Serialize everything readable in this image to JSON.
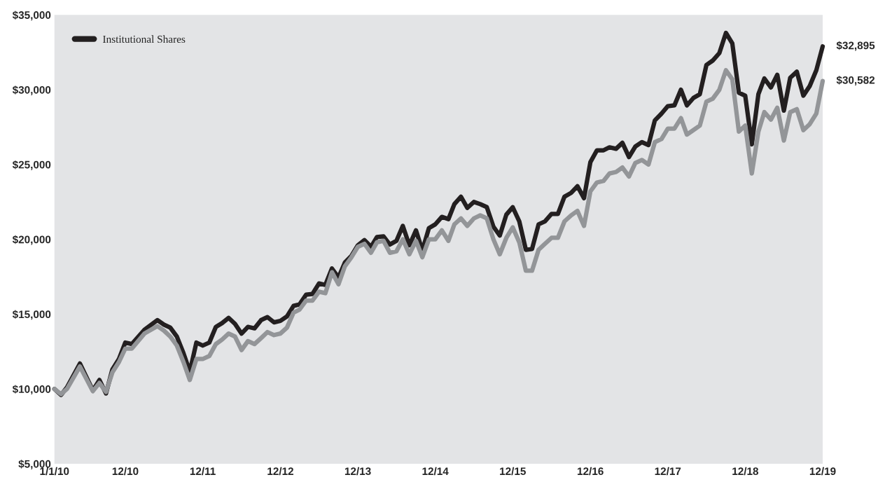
{
  "chart_data": {
    "type": "line",
    "x": [
      "2010-01",
      "2010-02",
      "2010-03",
      "2010-05",
      "2010-07",
      "2010-08",
      "2010-09",
      "2010-10",
      "2010-11",
      "2010-12",
      "2011-01",
      "2011-03",
      "2011-05",
      "2011-06",
      "2011-07",
      "2011-08",
      "2011-09",
      "2011-10",
      "2011-11",
      "2011-12",
      "2012-01",
      "2012-02",
      "2012-03",
      "2012-04",
      "2012-05",
      "2012-06",
      "2012-07",
      "2012-08",
      "2012-09",
      "2012-10",
      "2012-11",
      "2012-12",
      "2013-01",
      "2013-02",
      "2013-03",
      "2013-04",
      "2013-05",
      "2013-06",
      "2013-07",
      "2013-08",
      "2013-09",
      "2013-10",
      "2013-11",
      "2013-12",
      "2014-01",
      "2014-02",
      "2014-03",
      "2014-04",
      "2014-05",
      "2014-06",
      "2014-07",
      "2014-08",
      "2014-09",
      "2014-10",
      "2014-11",
      "2014-12",
      "2015-01",
      "2015-02",
      "2015-03",
      "2015-04",
      "2015-05",
      "2015-06",
      "2015-07",
      "2015-08",
      "2015-09",
      "2015-10",
      "2015-11",
      "2015-12",
      "2016-01",
      "2016-02",
      "2016-03",
      "2016-04",
      "2016-05",
      "2016-06",
      "2016-07",
      "2016-08",
      "2016-09",
      "2016-10",
      "2016-11",
      "2016-12",
      "2017-01",
      "2017-02",
      "2017-03",
      "2017-04",
      "2017-05",
      "2017-06",
      "2017-07",
      "2017-08",
      "2017-09",
      "2017-10",
      "2017-11",
      "2017-12",
      "2018-01",
      "2018-02",
      "2018-03",
      "2018-04",
      "2018-05",
      "2018-06",
      "2018-07",
      "2018-08",
      "2018-09",
      "2018-10",
      "2018-11",
      "2018-12",
      "2019-01",
      "2019-02",
      "2019-03",
      "2019-04",
      "2019-05",
      "2019-06",
      "2019-07",
      "2019-08",
      "2019-09",
      "2019-10",
      "2019-11",
      "2019-12"
    ],
    "series": [
      {
        "name": "Institutional Shares",
        "color": "#231f20",
        "values": [
          10000,
          9600,
          10100,
          11700,
          9900,
          10600,
          9700,
          11300,
          12000,
          13100,
          13000,
          13950,
          14600,
          14300,
          14100,
          13500,
          12400,
          11150,
          13100,
          12900,
          13100,
          14150,
          14400,
          14750,
          14350,
          13700,
          14150,
          14050,
          14600,
          14800,
          14450,
          14550,
          14850,
          15550,
          15650,
          16300,
          16350,
          17050,
          16950,
          18050,
          17450,
          18450,
          18900,
          19600,
          19950,
          19500,
          20150,
          20200,
          19650,
          19900,
          20900,
          19600,
          20600,
          19250,
          20750,
          21000,
          21500,
          21350,
          22350,
          22850,
          22100,
          22500,
          22350,
          22150,
          20850,
          20250,
          21650,
          22150,
          21200,
          19300,
          19350,
          21000,
          21200,
          21700,
          21700,
          22850,
          23100,
          23550,
          22750,
          25150,
          25950,
          25950,
          26150,
          26050,
          26450,
          25500,
          26200,
          26500,
          26300,
          27950,
          28400,
          28900,
          28950,
          30000,
          28950,
          29450,
          29700,
          31650,
          31950,
          32450,
          33800,
          33100,
          29800,
          29600,
          26350,
          29700,
          30750,
          30150,
          31000,
          28600,
          30800,
          31200,
          29600,
          30250,
          31300,
          32895
        ]
      },
      {
        "color": "#939598",
        "values": [
          10000,
          9650,
          10000,
          11500,
          9850,
          10400,
          9800,
          11100,
          11800,
          12700,
          12700,
          13700,
          14200,
          13900,
          13500,
          12900,
          11800,
          10600,
          12000,
          12000,
          12200,
          13000,
          13300,
          13700,
          13500,
          12600,
          13200,
          13000,
          13400,
          13800,
          13600,
          13700,
          14100,
          15100,
          15300,
          15900,
          15900,
          16500,
          16400,
          17800,
          17000,
          18200,
          18800,
          19500,
          19700,
          19100,
          19800,
          19900,
          19100,
          19200,
          20000,
          19000,
          19900,
          18800,
          20000,
          20000,
          20600,
          19900,
          21000,
          21400,
          20900,
          21400,
          21600,
          21400,
          20000,
          19000,
          20100,
          20800,
          19800,
          17900,
          17900,
          19300,
          19700,
          20100,
          20100,
          21200,
          21600,
          21900,
          20900,
          23200,
          23800,
          23900,
          24400,
          24500,
          24800,
          24200,
          25100,
          25300,
          25000,
          26500,
          26700,
          27400,
          27400,
          28100,
          27000,
          27300,
          27600,
          29200,
          29400,
          30000,
          31300,
          30700,
          27200,
          27600,
          24400,
          27200,
          28500,
          28000,
          28800,
          26600,
          28500,
          28700,
          27300,
          27700,
          28400,
          30582
        ]
      }
    ],
    "xlim": [
      "2010-01",
      "2019-12"
    ],
    "xticks": [
      {
        "value": "2010-01",
        "label": "1/1/10"
      },
      {
        "value": "2010-12",
        "label": "12/10"
      },
      {
        "value": "2011-12",
        "label": "12/11"
      },
      {
        "value": "2012-12",
        "label": "12/12"
      },
      {
        "value": "2013-12",
        "label": "12/13"
      },
      {
        "value": "2014-12",
        "label": "12/14"
      },
      {
        "value": "2015-12",
        "label": "12/15"
      },
      {
        "value": "2016-12",
        "label": "12/16"
      },
      {
        "value": "2017-12",
        "label": "12/17"
      },
      {
        "value": "2018-12",
        "label": "12/18"
      },
      {
        "value": "2019-12",
        "label": "12/19"
      }
    ],
    "ylim": [
      5000,
      35000
    ],
    "yticks": [
      {
        "value": 5000,
        "label": "$5,000"
      },
      {
        "value": 10000,
        "label": "$10,000"
      },
      {
        "value": 15000,
        "label": "$15,000"
      },
      {
        "value": 20000,
        "label": "$20,000"
      },
      {
        "value": 25000,
        "label": "$25,000"
      },
      {
        "value": 30000,
        "label": "$30,000"
      },
      {
        "value": 35000,
        "label": "$35,000"
      }
    ],
    "annotations": [
      {
        "text": "$32,895",
        "x": "2019-12",
        "y": 32895
      },
      {
        "text": "$30,582",
        "x": "2019-12",
        "y": 30582
      }
    ],
    "legend": "top left",
    "grid": false,
    "marker": "none",
    "line_style": "solid"
  }
}
